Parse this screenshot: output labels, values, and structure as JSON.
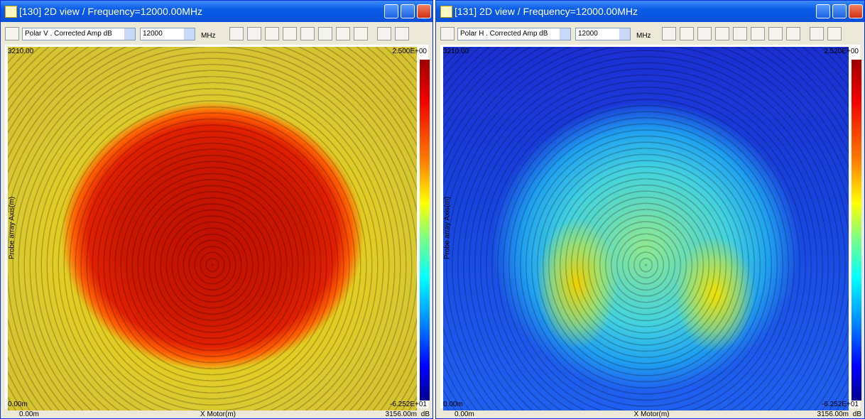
{
  "windows": [
    {
      "title": "[130] 2D view / Frequency=12000.00MHz",
      "toolbar": {
        "component": "Polar V . Corrected Amp dB",
        "frequency": "12000",
        "unit": "MHz"
      },
      "plot": {
        "y_axis_label": "Probe array Axis(m)",
        "y_max": "3210.00",
        "y_min": "0.00m",
        "x_axis_label": "X Motor(m)",
        "x_min": "0.00m",
        "x_max": "3156.00m",
        "colorbar_max": "2.500E+00",
        "colorbar_min": "-6.252E+01",
        "colorbar_unit": "dB"
      }
    },
    {
      "title": "[131] 2D view / Frequency=12000.00MHz",
      "toolbar": {
        "component": "Polar H . Corrected Amp dB",
        "frequency": "12000",
        "unit": "MHz"
      },
      "plot": {
        "y_axis_label": "Probe array Axis(m)",
        "y_max": "3210.00",
        "y_min": "0.00m",
        "x_axis_label": "X Motor(m)",
        "x_min": "0.00m",
        "x_max": "3156.00m",
        "colorbar_max": "2.520E+00",
        "colorbar_min": "-6.252E+01",
        "colorbar_unit": "dB"
      }
    }
  ]
}
